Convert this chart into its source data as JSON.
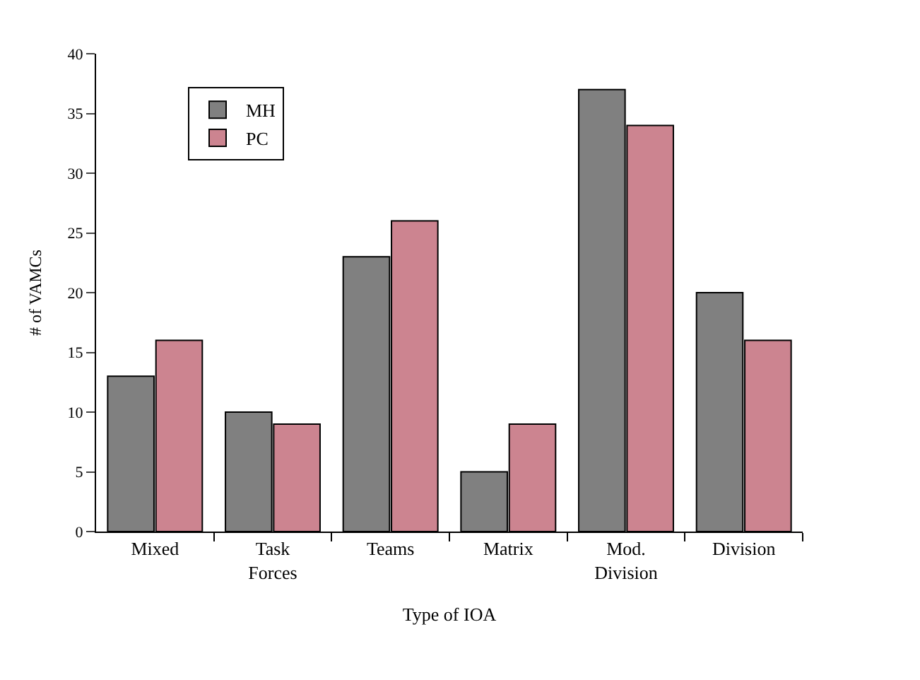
{
  "chart_data": {
    "type": "bar",
    "xlabel": "Type of IOA",
    "ylabel": "# of VAMCs",
    "categories": [
      "Mixed",
      "Task\nForces",
      "Teams",
      "Matrix",
      "Mod.\nDivision",
      "Division"
    ],
    "series": [
      {
        "name": "MH",
        "color": "#808080",
        "values": [
          13,
          10,
          23,
          5,
          37,
          20
        ]
      },
      {
        "name": "PC",
        "color": "#cc8490",
        "values": [
          16,
          9,
          26,
          9,
          34,
          16
        ]
      }
    ],
    "ylim": [
      0,
      40
    ],
    "yticks": [
      0,
      5,
      10,
      15,
      20,
      25,
      30,
      35,
      40
    ],
    "legend": "top left"
  }
}
